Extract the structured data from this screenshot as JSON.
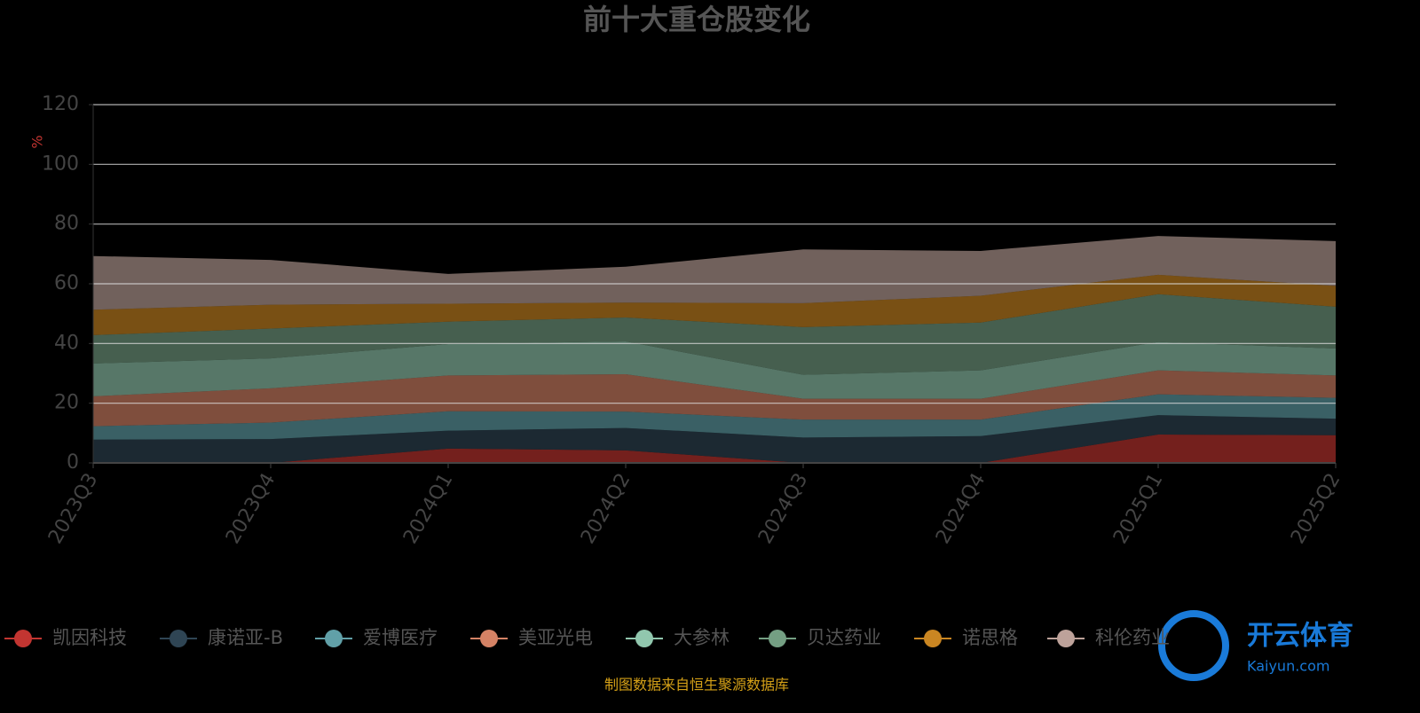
{
  "chart_data": {
    "type": "stacked-area",
    "title": "前十大重仓股变化",
    "y_label": "%",
    "source": "制图数据来自恒生聚源数据库",
    "categories": [
      "2023Q3",
      "2023Q4",
      "2024Q1",
      "2024Q2",
      "2024Q3",
      "2024Q4",
      "2025Q1",
      "2025Q2"
    ],
    "ylim": [
      0,
      120
    ],
    "yticks": [
      0,
      20,
      40,
      60,
      80,
      100,
      120
    ],
    "grid": true,
    "legend": "bottom",
    "series": [
      {
        "name": "凯因科技",
        "color": "#c23531",
        "values": [
          0,
          0,
          4.8,
          4.2,
          0,
          0,
          9.5,
          9.3
        ]
      },
      {
        "name": "康诺亚-B",
        "color": "#2f4554",
        "values": [
          7.8,
          8,
          6,
          7.5,
          8.5,
          9,
          6.5,
          5.5
        ]
      },
      {
        "name": "爱博医疗",
        "color": "#61a0a8",
        "values": [
          4.5,
          5.5,
          6.5,
          5.5,
          6,
          5.5,
          7,
          7
        ]
      },
      {
        "name": "美亚光电",
        "color": "#d48265",
        "values": [
          10,
          11.5,
          12,
          12.5,
          7,
          7,
          8,
          7.5
        ]
      },
      {
        "name": "大参林",
        "color": "#91c7ae",
        "values": [
          11,
          10,
          10.5,
          11,
          8,
          9.5,
          9.5,
          9
        ]
      },
      {
        "name": "贝达药业",
        "color": "#749f83",
        "values": [
          9.5,
          10,
          7.5,
          8,
          16,
          16,
          16,
          14
        ]
      },
      {
        "name": "诺思格",
        "color": "#ca8622",
        "values": [
          8.5,
          8,
          6,
          5,
          8,
          9,
          6.5,
          7
        ]
      },
      {
        "name": "科伦药业",
        "color": "#bda29a",
        "values": [
          18,
          15,
          10,
          12,
          18,
          15,
          13,
          15
        ]
      }
    ]
  },
  "watermark": {
    "title": "开云体育",
    "url": "Kaiyun.com"
  }
}
